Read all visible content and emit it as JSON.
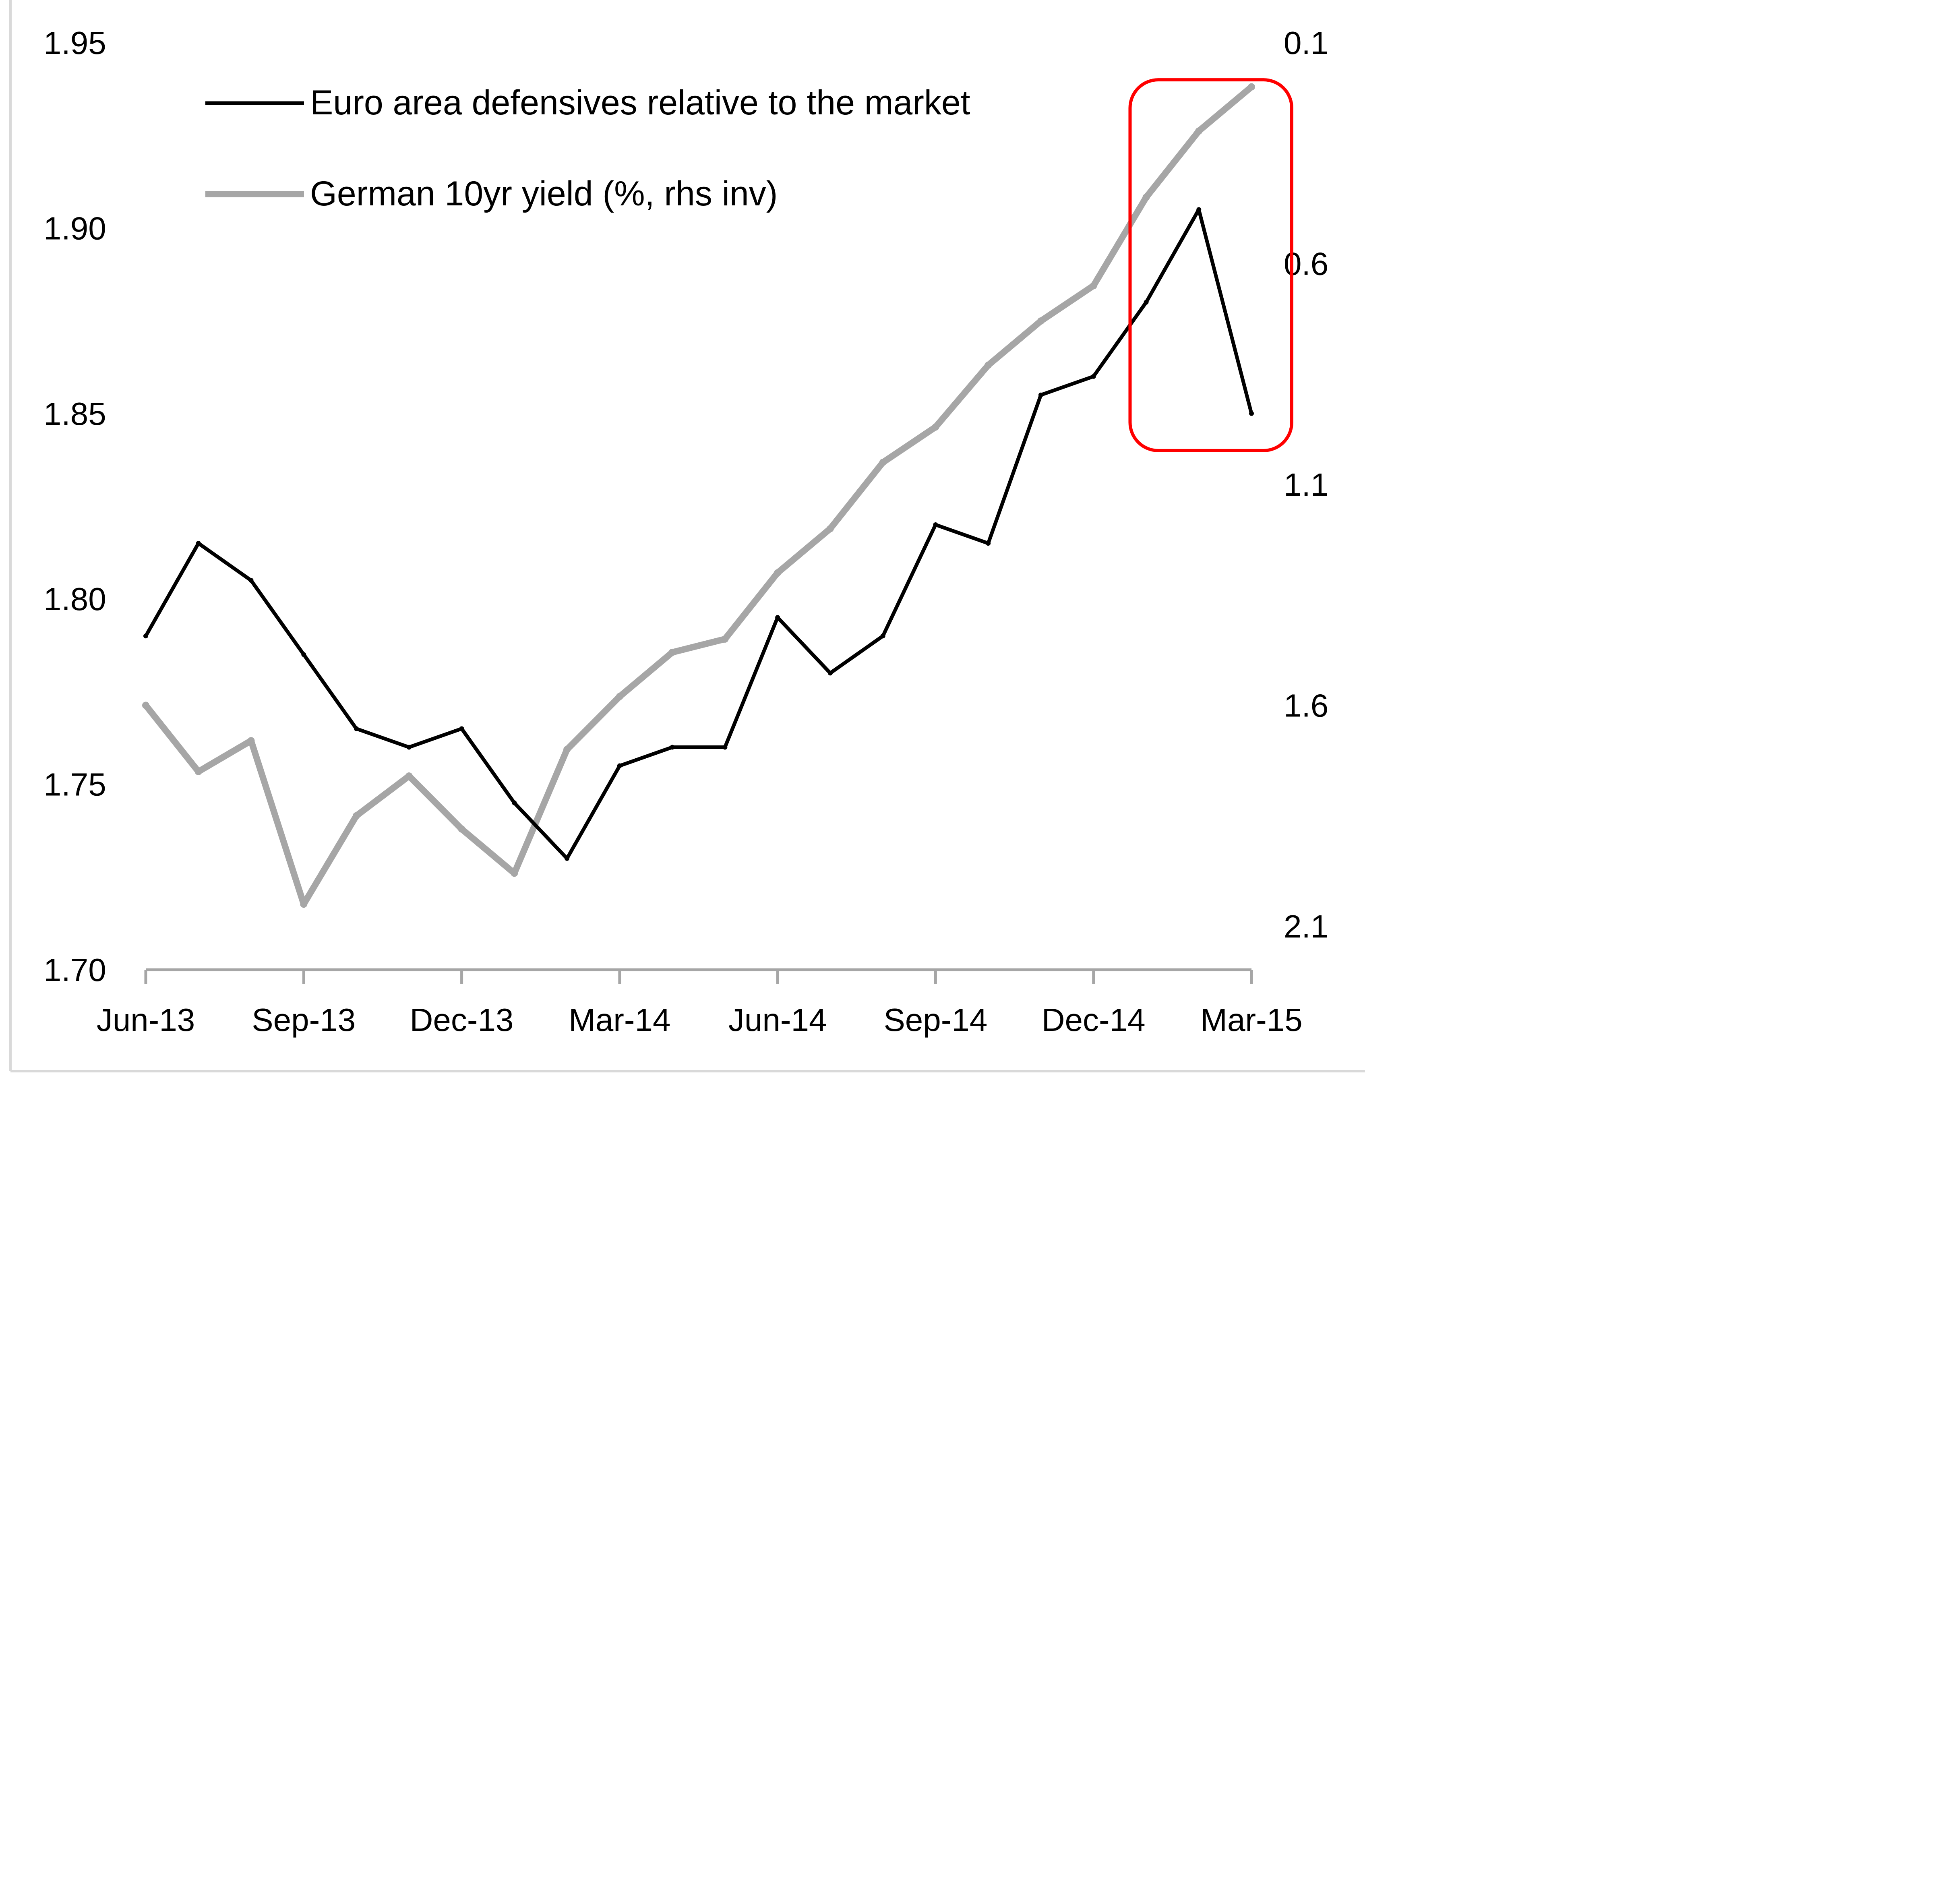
{
  "chart_data": {
    "type": "line",
    "title": "",
    "xlabel": "",
    "ylabel": "",
    "ylim": [
      1.7,
      1.95
    ],
    "y2lim": [
      0.1,
      2.1
    ],
    "y2_inverted": true,
    "grid": false,
    "legend_placement": "top-left",
    "yticks": [
      "1.95",
      "1.90",
      "1.85",
      "1.80",
      "1.75",
      "1.70"
    ],
    "y2ticks": [
      "0.1",
      "0.6",
      "1.1",
      "1.6",
      "2.1"
    ],
    "xticks": [
      "Jun-13",
      "Sep-13",
      "Dec-13",
      "Mar-14",
      "Jun-14",
      "Sep-14",
      "Dec-14",
      "Mar-15"
    ],
    "x": [
      "Jun-13",
      "Jul-13",
      "Aug-13",
      "Sep-13",
      "Oct-13",
      "Nov-13",
      "Dec-13",
      "Jan-14",
      "Feb-14",
      "Mar-14",
      "Apr-14",
      "May-14",
      "Jun-14",
      "Jul-14",
      "Aug-14",
      "Sep-14",
      "Oct-14",
      "Nov-14",
      "Dec-14",
      "Jan-15",
      "Feb-15",
      "Mar-15"
    ],
    "series": [
      {
        "name": "Euro area defensives relative to the market",
        "axis": "left",
        "color": "#000000",
        "values": [
          1.79,
          1.815,
          1.805,
          1.785,
          1.765,
          1.76,
          1.765,
          1.745,
          1.73,
          1.755,
          1.76,
          1.76,
          1.795,
          1.78,
          1.79,
          1.82,
          1.815,
          1.855,
          1.86,
          1.88,
          1.905,
          1.85
        ]
      },
      {
        "name": "German 10yr yield (%, rhs inv)",
        "axis": "right",
        "color": "#a6a6a6",
        "values": [
          1.6,
          1.75,
          1.68,
          2.05,
          1.85,
          1.76,
          1.88,
          1.98,
          1.7,
          1.58,
          1.48,
          1.45,
          1.3,
          1.2,
          1.05,
          0.97,
          0.83,
          0.73,
          0.65,
          0.45,
          0.3,
          0.2
        ]
      }
    ],
    "annotations": [
      {
        "type": "rounded-rectangle",
        "color": "#ff0000",
        "x_from": "Jan-15",
        "x_to": "Mar-15",
        "y_from": 1.84,
        "y_to": 1.94
      }
    ]
  }
}
